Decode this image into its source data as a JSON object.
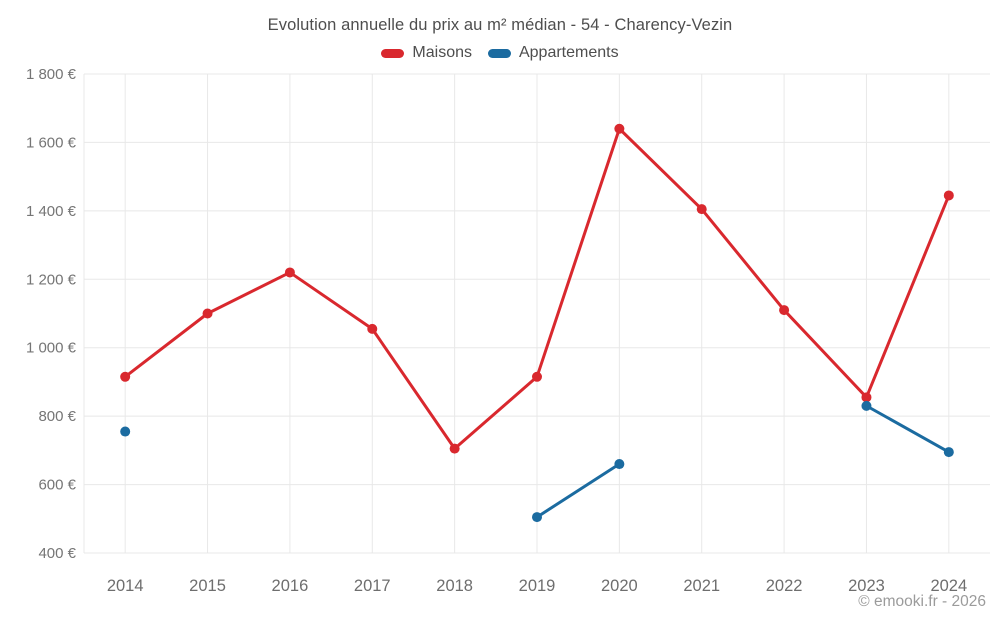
{
  "header": {
    "title": "Evolution annuelle du prix au m² médian - 54 - Charency-Vezin"
  },
  "legend": {
    "items": [
      {
        "label": "Maisons",
        "color": "#d9282e"
      },
      {
        "label": "Appartements",
        "color": "#1b6ba0"
      }
    ]
  },
  "footer": {
    "copyright": "© emooki.fr - 2026"
  },
  "chart_data": {
    "type": "line",
    "title": "Evolution annuelle du prix au m² médian - 54 - Charency-Vezin",
    "categories": [
      "2014",
      "2015",
      "2016",
      "2017",
      "2018",
      "2019",
      "2020",
      "2021",
      "2022",
      "2023",
      "2024"
    ],
    "series": [
      {
        "name": "Maisons",
        "color": "#d9282e",
        "values": [
          915,
          1100,
          1220,
          1055,
          705,
          915,
          1640,
          1405,
          1110,
          855,
          1445
        ]
      },
      {
        "name": "Appartements",
        "color": "#1b6ba0",
        "values": [
          755,
          null,
          null,
          null,
          null,
          505,
          660,
          null,
          null,
          830,
          695
        ]
      }
    ],
    "ylabel": "",
    "xlabel": "",
    "ylim": [
      400,
      1800
    ],
    "ytick_step": 200,
    "ytick_labels": [
      "400 €",
      "600 €",
      "800 €",
      "1 000 €",
      "1 200 €",
      "1 400 €",
      "1 600 €",
      "1 800 €"
    ],
    "grid": true,
    "legend_position": "top",
    "marker_radius": 5,
    "axis_color": "#757575",
    "grid_color": "#e8e8e8"
  }
}
